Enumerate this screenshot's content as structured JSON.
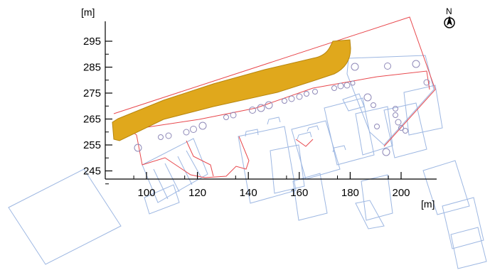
{
  "map": {
    "y_axis": {
      "unit": "[m]",
      "ticks": [
        {
          "value": 295,
          "label": "295"
        },
        {
          "value": 285,
          "label": "285"
        },
        {
          "value": 275,
          "label": "275"
        },
        {
          "value": 265,
          "label": "265"
        },
        {
          "value": 255,
          "label": "255"
        },
        {
          "value": 245,
          "label": "245"
        }
      ]
    },
    "x_axis": {
      "unit": "[m]",
      "ticks": [
        {
          "value": 100,
          "label": "100"
        },
        {
          "value": 120,
          "label": "120"
        },
        {
          "value": 140,
          "label": "140"
        },
        {
          "value": 160,
          "label": "160"
        },
        {
          "value": 180,
          "label": "180"
        },
        {
          "value": 200,
          "label": "200"
        }
      ]
    },
    "north_arrow": {
      "label": "N"
    },
    "colors": {
      "highlight_fill": "#E0A81C",
      "highlight_stroke": "#B7860F",
      "parcel_line": "#E8474C",
      "building_line": "#9DB7E2",
      "tree_outline": "#8F89B8",
      "axis": "#000000"
    },
    "layers": [
      "highlighted-area",
      "parcel-boundaries",
      "building-outlines",
      "trees"
    ]
  }
}
